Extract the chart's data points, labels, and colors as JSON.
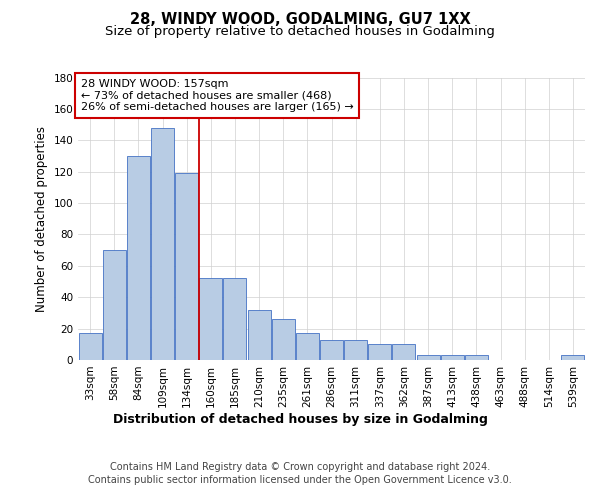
{
  "title": "28, WINDY WOOD, GODALMING, GU7 1XX",
  "subtitle": "Size of property relative to detached houses in Godalming",
  "xlabel": "Distribution of detached houses by size in Godalming",
  "ylabel": "Number of detached properties",
  "categories": [
    "33sqm",
    "58sqm",
    "84sqm",
    "109sqm",
    "134sqm",
    "160sqm",
    "185sqm",
    "210sqm",
    "235sqm",
    "261sqm",
    "286sqm",
    "311sqm",
    "337sqm",
    "362sqm",
    "387sqm",
    "413sqm",
    "438sqm",
    "463sqm",
    "488sqm",
    "514sqm",
    "539sqm"
  ],
  "values": [
    17,
    70,
    130,
    148,
    119,
    52,
    52,
    32,
    26,
    17,
    13,
    13,
    10,
    10,
    3,
    3,
    3,
    0,
    0,
    0,
    3
  ],
  "bar_color": "#b8cce4",
  "bar_edge_color": "#4472c4",
  "background_color": "#ffffff",
  "grid_color": "#d0d0d0",
  "vline_color": "#cc0000",
  "vline_x_idx": 5,
  "annotation_line1": "28 WINDY WOOD: 157sqm",
  "annotation_line2": "← 73% of detached houses are smaller (468)",
  "annotation_line3": "26% of semi-detached houses are larger (165) →",
  "annotation_box_color": "#ffffff",
  "annotation_box_edge_color": "#cc0000",
  "footer_line1": "Contains HM Land Registry data © Crown copyright and database right 2024.",
  "footer_line2": "Contains public sector information licensed under the Open Government Licence v3.0.",
  "ylim": [
    0,
    180
  ],
  "yticks": [
    0,
    20,
    40,
    60,
    80,
    100,
    120,
    140,
    160,
    180
  ],
  "title_fontsize": 10.5,
  "subtitle_fontsize": 9.5,
  "xlabel_fontsize": 9,
  "ylabel_fontsize": 8.5,
  "tick_fontsize": 7.5,
  "annotation_fontsize": 8,
  "footer_fontsize": 7
}
